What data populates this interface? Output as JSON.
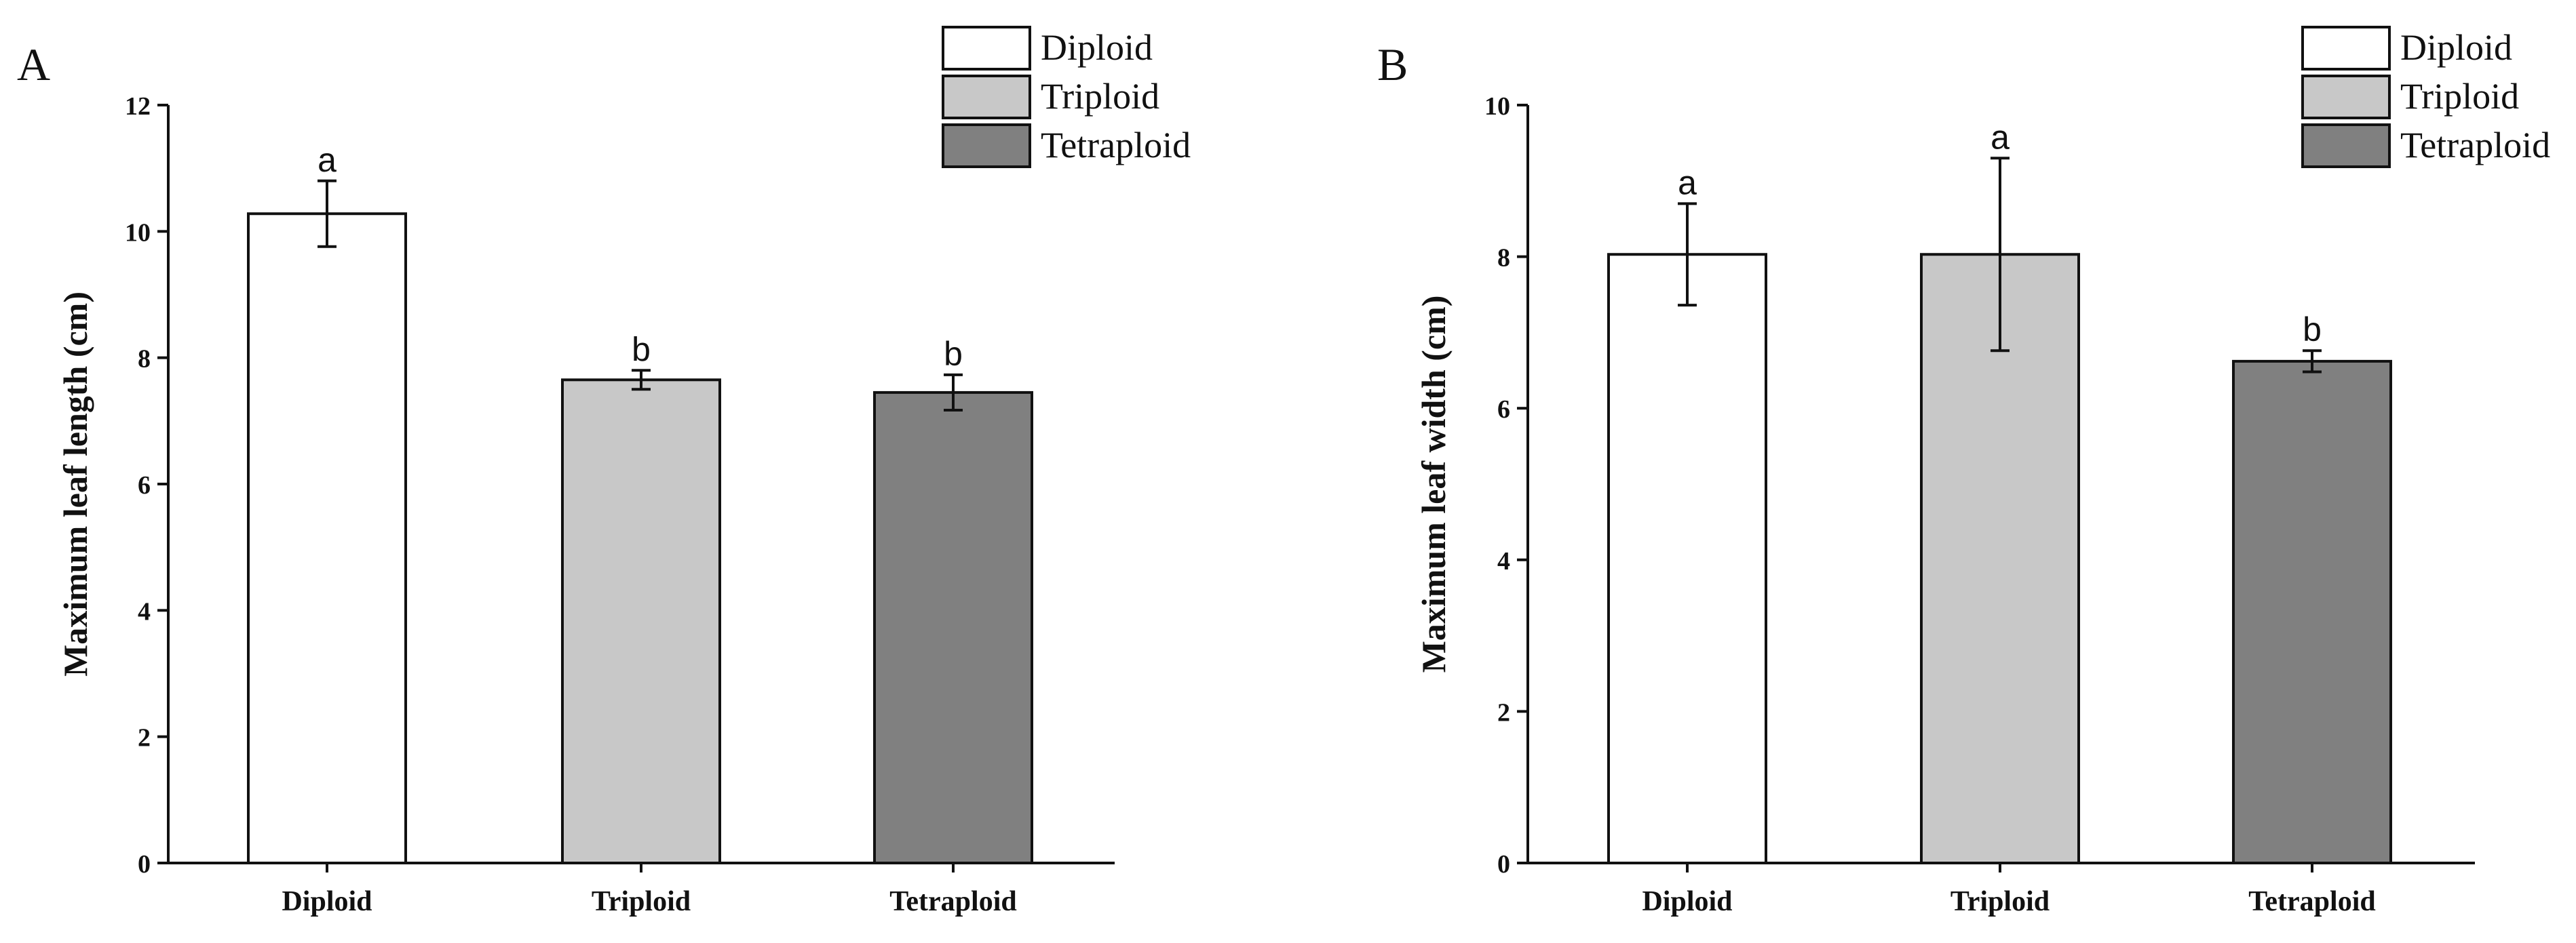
{
  "chart_data": [
    {
      "type": "bar",
      "panel": "A",
      "title": "",
      "xlabel": "",
      "ylabel": "Maximum leaf length (cm)",
      "ylim": [
        0,
        12
      ],
      "yticks": [
        "0",
        "2",
        "4",
        "6",
        "8",
        "10",
        "12"
      ],
      "categories": [
        "Diploid",
        "Triploid",
        "Tetraploid"
      ],
      "values": [
        10.28,
        7.65,
        7.45
      ],
      "errors": [
        0.52,
        0.15,
        0.28
      ],
      "significance": [
        "a",
        "b",
        "b"
      ],
      "colors": [
        "#ffffff",
        "#c8c8c8",
        "#808080"
      ],
      "legend": [
        "Diploid",
        "Triploid",
        "Tetraploid"
      ],
      "legend_position": "top-right"
    },
    {
      "type": "bar",
      "panel": "B",
      "title": "",
      "xlabel": "",
      "ylabel": "Maximum leaf width (cm)",
      "ylim": [
        0,
        10
      ],
      "yticks": [
        "0",
        "2",
        "4",
        "6",
        "8",
        "10"
      ],
      "categories": [
        "Diploid",
        "Triploid",
        "Tetraploid"
      ],
      "values": [
        8.03,
        8.03,
        6.62
      ],
      "errors": [
        0.67,
        1.27,
        0.14
      ],
      "significance": [
        "a",
        "a",
        "b"
      ],
      "colors": [
        "#ffffff",
        "#c8c8c8",
        "#808080"
      ],
      "legend": [
        "Diploid",
        "Triploid",
        "Tetraploid"
      ],
      "legend_position": "top-right"
    }
  ]
}
